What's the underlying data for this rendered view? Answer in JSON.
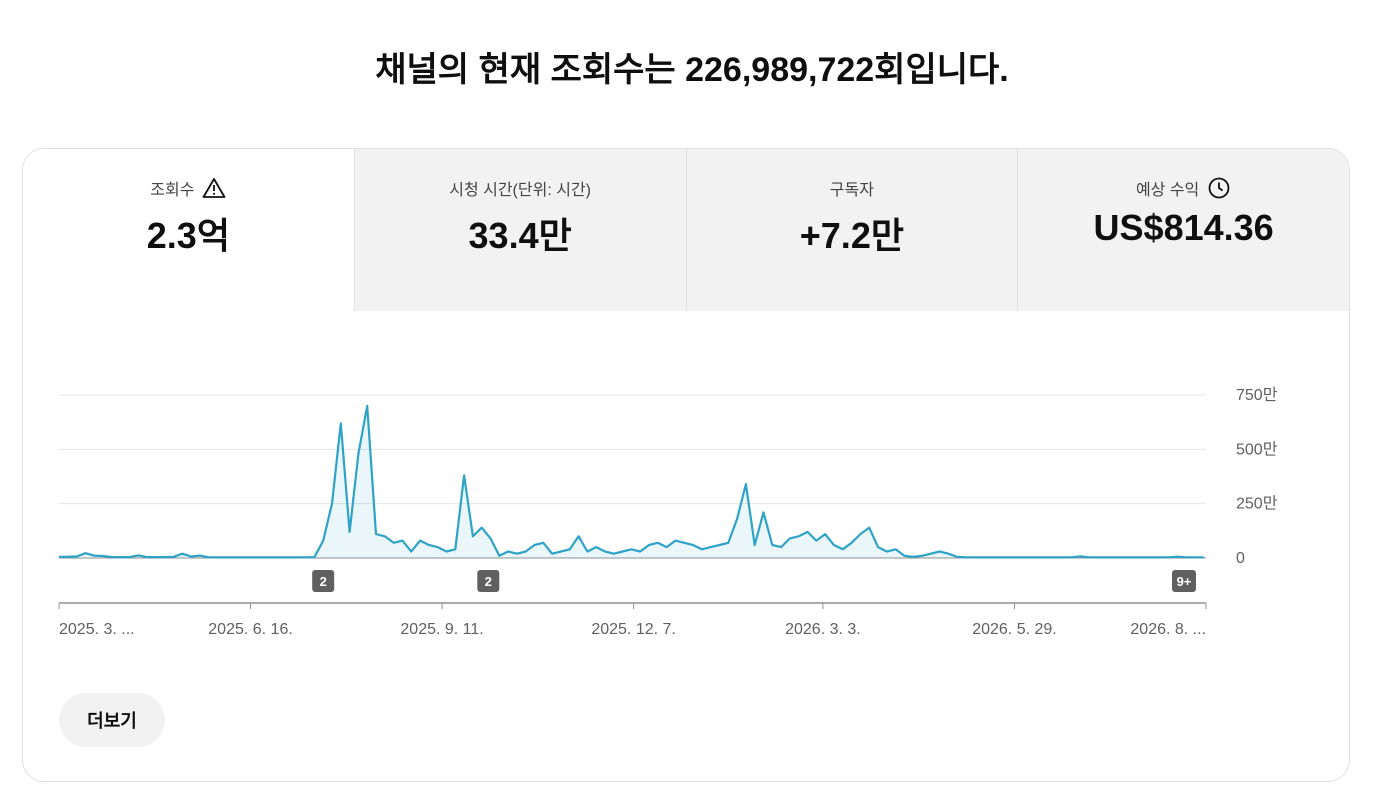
{
  "header": {
    "title": "채널의 현재 조회수는 226,989,722회입니다."
  },
  "tabs": [
    {
      "label": "조회수",
      "value": "2.3억"
    },
    {
      "label": "시청 시간(단위: 시간)",
      "value": "33.4만"
    },
    {
      "label": "구독자",
      "value": "+7.2만"
    },
    {
      "label": "예상 수익",
      "value": "US$814.36"
    }
  ],
  "more_button": "더보기",
  "chart_data": {
    "type": "line",
    "color": "#2ea3c7",
    "grid": true,
    "x": [
      "2025-03-21",
      "2025-03-25",
      "2025-03-29",
      "2025-04-02",
      "2025-04-06",
      "2025-04-10",
      "2025-04-14",
      "2025-04-18",
      "2025-04-22",
      "2025-04-26",
      "2025-04-30",
      "2025-05-04",
      "2025-05-08",
      "2025-05-12",
      "2025-05-16",
      "2025-05-20",
      "2025-05-24",
      "2025-05-28",
      "2025-06-01",
      "2025-06-05",
      "2025-06-09",
      "2025-06-13",
      "2025-06-17",
      "2025-06-21",
      "2025-06-25",
      "2025-06-29",
      "2025-07-03",
      "2025-07-07",
      "2025-07-11",
      "2025-07-15",
      "2025-07-19",
      "2025-07-23",
      "2025-07-27",
      "2025-07-31",
      "2025-08-04",
      "2025-08-08",
      "2025-08-12",
      "2025-08-16",
      "2025-08-20",
      "2025-08-24",
      "2025-08-28",
      "2025-09-01",
      "2025-09-05",
      "2025-09-09",
      "2025-09-13",
      "2025-09-17",
      "2025-09-21",
      "2025-09-25",
      "2025-09-29",
      "2025-10-03",
      "2025-10-07",
      "2025-10-11",
      "2025-10-15",
      "2025-10-19",
      "2025-10-23",
      "2025-10-27",
      "2025-10-31",
      "2025-11-04",
      "2025-11-08",
      "2025-11-12",
      "2025-11-16",
      "2025-11-20",
      "2025-11-24",
      "2025-11-28",
      "2025-12-02",
      "2025-12-06",
      "2025-12-10",
      "2025-12-14",
      "2025-12-18",
      "2025-12-22",
      "2025-12-26",
      "2025-12-30",
      "2026-01-03",
      "2026-01-07",
      "2026-01-11",
      "2026-01-15",
      "2026-01-19",
      "2026-01-23",
      "2026-01-27",
      "2026-01-31",
      "2026-02-04",
      "2026-02-08",
      "2026-02-12",
      "2026-02-16",
      "2026-02-20",
      "2026-02-24",
      "2026-02-28",
      "2026-03-04",
      "2026-03-08",
      "2026-03-12",
      "2026-03-16",
      "2026-03-20",
      "2026-03-24",
      "2026-03-28",
      "2026-04-01",
      "2026-04-05",
      "2026-04-09",
      "2026-04-13",
      "2026-04-17",
      "2026-04-21",
      "2026-04-25",
      "2026-04-29",
      "2026-05-03",
      "2026-05-07",
      "2026-05-11",
      "2026-05-15",
      "2026-05-19",
      "2026-05-23",
      "2026-05-27",
      "2026-05-31",
      "2026-06-04",
      "2026-06-08",
      "2026-06-12",
      "2026-06-16",
      "2026-06-20",
      "2026-06-24",
      "2026-06-28",
      "2026-07-02",
      "2026-07-06",
      "2026-07-10",
      "2026-07-14",
      "2026-07-18",
      "2026-07-22",
      "2026-07-26",
      "2026-07-30",
      "2026-08-03",
      "2026-08-07",
      "2026-08-11",
      "2026-08-15",
      "2026-08-19",
      "2026-08-23"
    ],
    "values": [
      50000,
      60000,
      70000,
      220000,
      110000,
      90000,
      40000,
      40000,
      40000,
      120000,
      40000,
      40000,
      40000,
      50000,
      200000,
      70000,
      110000,
      30000,
      30000,
      30000,
      30000,
      30000,
      30000,
      30000,
      30000,
      30000,
      30000,
      30000,
      30000,
      40000,
      800000,
      2500000,
      6200000,
      1200000,
      4800000,
      7000000,
      1100000,
      1000000,
      700000,
      800000,
      300000,
      800000,
      600000,
      500000,
      300000,
      400000,
      3800000,
      1000000,
      1400000,
      900000,
      100000,
      300000,
      200000,
      300000,
      600000,
      700000,
      200000,
      300000,
      400000,
      1000000,
      300000,
      500000,
      300000,
      200000,
      300000,
      400000,
      300000,
      600000,
      700000,
      500000,
      800000,
      700000,
      600000,
      400000,
      500000,
      600000,
      700000,
      1800000,
      3400000,
      600000,
      2100000,
      600000,
      500000,
      900000,
      1000000,
      1200000,
      800000,
      1100000,
      600000,
      400000,
      700000,
      1100000,
      1400000,
      500000,
      300000,
      400000,
      100000,
      50000,
      100000,
      200000,
      300000,
      200000,
      50000,
      30000,
      30000,
      30000,
      30000,
      30000,
      30000,
      30000,
      30000,
      30000,
      30000,
      30000,
      30000,
      30000,
      80000,
      30000,
      30000,
      30000,
      30000,
      30000,
      30000,
      30000,
      30000,
      30000,
      30000,
      60000,
      30000,
      30000,
      30000
    ],
    "xlim": [
      "2025-03-21",
      "2026-08-24"
    ],
    "xticks": [
      {
        "value": "2025-03-21",
        "label": "2025. 3. ..."
      },
      {
        "value": "2025-06-16",
        "label": "2025. 6. 16."
      },
      {
        "value": "2025-09-11",
        "label": "2025. 9. 11."
      },
      {
        "value": "2025-12-07",
        "label": "2025. 12. 7."
      },
      {
        "value": "2026-03-03",
        "label": "2026. 3. 3."
      },
      {
        "value": "2026-05-29",
        "label": "2026. 5. 29."
      },
      {
        "value": "2026-08-24",
        "label": "2026. 8. ..."
      }
    ],
    "ylim": [
      0,
      7500000
    ],
    "yticks": [
      {
        "value": 0,
        "label": "0"
      },
      {
        "value": 2500000,
        "label": "250만"
      },
      {
        "value": 5000000,
        "label": "500만"
      },
      {
        "value": 7500000,
        "label": "750만"
      }
    ],
    "annotations": [
      {
        "x": "2025-07-19",
        "label": "2"
      },
      {
        "x": "2025-10-02",
        "label": "2"
      },
      {
        "x": "2026-08-14",
        "label": "9+"
      }
    ]
  }
}
